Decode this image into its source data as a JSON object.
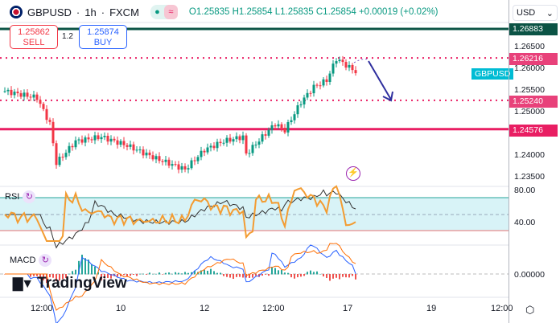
{
  "header": {
    "symbol": "GBPUSD",
    "interval": "1h",
    "exchange": "FXCM",
    "open": "O1.25835",
    "high": "H1.25854",
    "low": "L1.25835",
    "close": "C1.25854",
    "change": "+0.00019 (+0.02%)"
  },
  "trade": {
    "sell_price": "1.25862",
    "sell_label": "SELL",
    "spread": "1.2",
    "buy_price": "1.25874",
    "buy_label": "BUY"
  },
  "axis": {
    "currency": "USD",
    "ticks": [
      "1.26500",
      "1.26000",
      "1.25500",
      "1.25000",
      "1.24000",
      "1.23500"
    ],
    "rsi_ticks": [
      "80.00",
      "40.00"
    ],
    "macd_ticks": [
      "0.00000"
    ]
  },
  "levels": [
    {
      "label": "1.26883",
      "value": 1.26883,
      "color": "#0b5345",
      "style": "solid"
    },
    {
      "label": "1.26216",
      "value": 1.26216,
      "color": "#e91e63",
      "style": "dotted"
    },
    {
      "label": "1.25240",
      "value": 1.2524,
      "color": "#e91e63",
      "style": "dotted"
    },
    {
      "label": "1.24576",
      "value": 1.24576,
      "color": "#e91e63",
      "style": "solid"
    }
  ],
  "symbol_tag": "GBPUSD",
  "indicators": {
    "rsi": "RSI",
    "macd": "MACD"
  },
  "brand": "TradingView",
  "time_labels": [
    "12:00",
    "10",
    "12",
    "12:00",
    "17",
    "19",
    "12:00"
  ],
  "chart_data": {
    "type": "candlestick",
    "keypoints": [
      [
        0,
        1.2545
      ],
      [
        10,
        1.253
      ],
      [
        14,
        1.247
      ],
      [
        16,
        1.238
      ],
      [
        22,
        1.243
      ],
      [
        30,
        1.244
      ],
      [
        38,
        1.242
      ],
      [
        47,
        1.239
      ],
      [
        56,
        1.2365
      ],
      [
        62,
        1.241
      ],
      [
        68,
        1.243
      ],
      [
        74,
        1.244
      ],
      [
        75,
        1.24
      ],
      [
        80,
        1.244
      ],
      [
        84,
        1.247
      ],
      [
        87,
        1.2455
      ],
      [
        92,
        1.252
      ],
      [
        96,
        1.2555
      ],
      [
        100,
        1.257
      ],
      [
        103,
        1.262
      ],
      [
        109,
        1.259
      ]
    ],
    "rsi_ticks": [
      80,
      40
    ]
  }
}
